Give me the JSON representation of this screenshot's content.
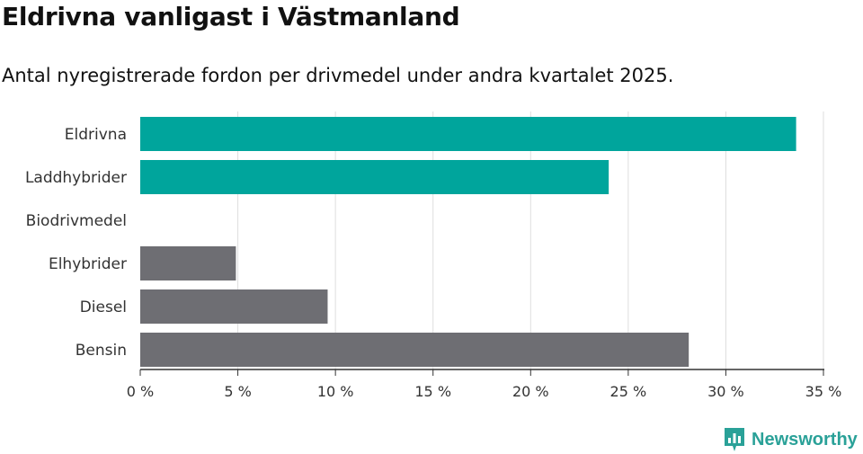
{
  "title": "Eldrivna vanligast i Västmanland",
  "subtitle": "Antal nyregistrerade fordon per drivmedel under andra kvartalet 2025.",
  "brand": {
    "name": "Newsworthy",
    "logo_icon": "bar-chart-badge-icon"
  },
  "colors": {
    "highlight": "#00a59c",
    "default": "#6e6e73",
    "brand": "#2aa198"
  },
  "chart_data": {
    "type": "bar",
    "orientation": "horizontal",
    "title": "Eldrivna vanligast i Västmanland",
    "subtitle": "Antal nyregistrerade fordon per drivmedel under andra kvartalet 2025.",
    "categories": [
      "Eldrivna",
      "Laddhybrider",
      "Biodrivmedel",
      "Elhybrider",
      "Diesel",
      "Bensin"
    ],
    "values": [
      33.6,
      24.0,
      0,
      4.9,
      9.6,
      28.1
    ],
    "highlighted": [
      true,
      true,
      true,
      false,
      false,
      false
    ],
    "xlim": [
      0,
      35
    ],
    "xticks": [
      0,
      5,
      10,
      15,
      20,
      25,
      30,
      35
    ],
    "xtick_labels": [
      "0 %",
      "5 %",
      "10 %",
      "15 %",
      "20 %",
      "25 %",
      "30 %",
      "35 %"
    ],
    "grid": "vertical"
  }
}
